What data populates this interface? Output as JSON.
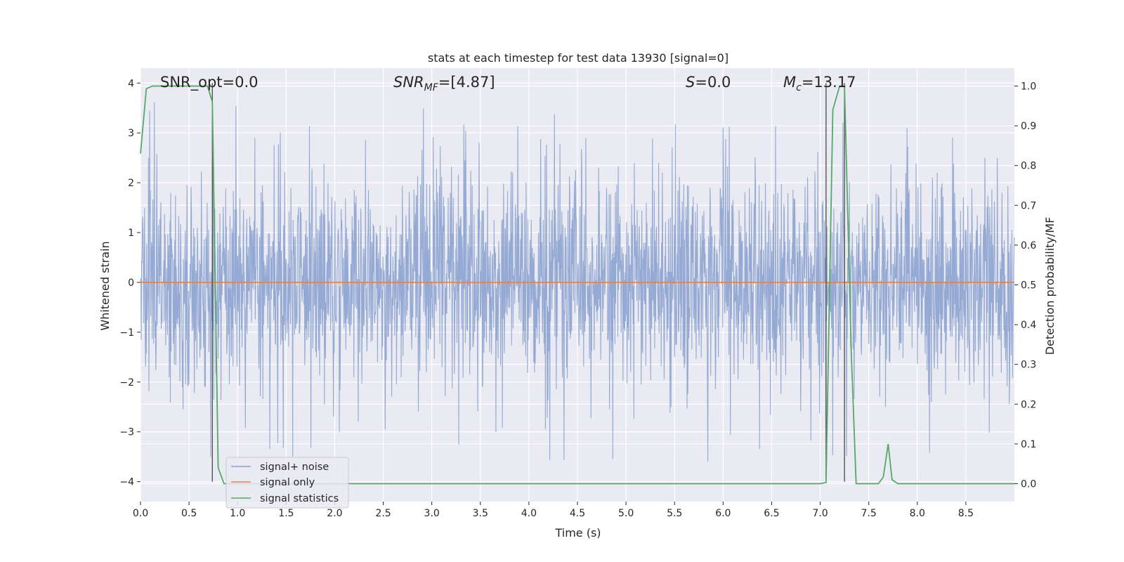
{
  "chart_data": {
    "type": "line",
    "title": "stats at each timestep for test data 13930 [signal=0]",
    "xlabel": "Time (s)",
    "ylabel": "Whitened strain",
    "y2label": "Detection probability/MF",
    "xlim": [
      0.0,
      9.0
    ],
    "ylim": [
      -4.4,
      4.3
    ],
    "y2lim": [
      -0.045,
      1.045
    ],
    "xticks": [
      "0.0",
      "0.5",
      "1.0",
      "1.5",
      "2.0",
      "2.5",
      "3.0",
      "3.5",
      "4.0",
      "4.5",
      "5.0",
      "5.5",
      "6.0",
      "6.5",
      "7.0",
      "7.5",
      "8.0",
      "8.5"
    ],
    "yticks": [
      "4",
      "3",
      "2",
      "1",
      "0",
      "−1",
      "−2",
      "−3",
      "−4"
    ],
    "y2ticks": [
      "1.0",
      "0.9",
      "0.8",
      "0.7",
      "0.6",
      "0.5",
      "0.4",
      "0.3",
      "0.2",
      "0.1",
      "0.0"
    ],
    "grid": true,
    "legend_position": "lower-left",
    "annotations": {
      "snr_opt": "SNR_opt=0.0",
      "snr_mf_main": "SNR",
      "snr_mf_sub": "MF",
      "snr_mf_rest": "=[4.87]",
      "s_main": "S",
      "s_rest": "=0.0",
      "mc_main": "M",
      "mc_sub": "c",
      "mc_rest": "=13.17"
    },
    "vlines_x": [
      0.74,
      7.06,
      7.25
    ],
    "series": [
      {
        "name": "signal+ noise",
        "color": "#8ba2cf",
        "kind": "noise",
        "duration": 9.0,
        "typical_amplitude": 1.6,
        "spike_max": 3.95,
        "spike_min": -3.65
      },
      {
        "name": "signal only",
        "color": "#dd8452",
        "values": [
          [
            0.0,
            0.0
          ],
          [
            9.0,
            0.0
          ]
        ]
      },
      {
        "name": "signal statistics",
        "color": "#55a868",
        "axis": "right",
        "values": [
          [
            0.0,
            0.83
          ],
          [
            0.06,
            0.993
          ],
          [
            0.12,
            1.0
          ],
          [
            0.3,
            1.0
          ],
          [
            0.55,
            1.0
          ],
          [
            0.69,
            1.0
          ],
          [
            0.74,
            0.96
          ],
          [
            0.8,
            0.04
          ],
          [
            0.86,
            0.0
          ],
          [
            1.0,
            0.0
          ],
          [
            7.0,
            0.0
          ],
          [
            7.06,
            0.003
          ],
          [
            7.13,
            0.94
          ],
          [
            7.2,
            1.0
          ],
          [
            7.25,
            1.0
          ],
          [
            7.32,
            0.33
          ],
          [
            7.37,
            0.0
          ],
          [
            7.6,
            0.0
          ],
          [
            7.65,
            0.017
          ],
          [
            7.7,
            0.1
          ],
          [
            7.74,
            0.01
          ],
          [
            7.8,
            0.0
          ],
          [
            9.0,
            0.0
          ]
        ]
      }
    ]
  }
}
